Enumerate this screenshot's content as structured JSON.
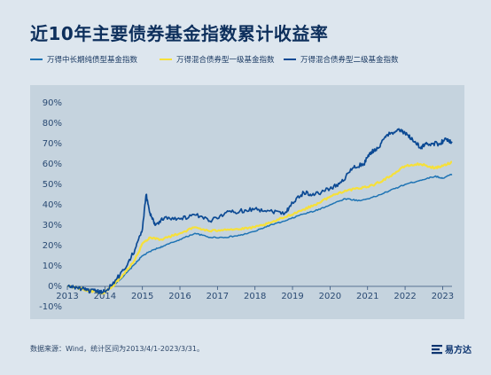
{
  "title": "近10年主要债券基金指数累计收益率",
  "source": "数据来源：Wind，统计区间为2013/4/1-2023/3/31。",
  "brand": "易方达",
  "colors": {
    "series1": "#1f74b4",
    "series2": "#f6e03a",
    "series3": "#0c4a94"
  },
  "chart_data": {
    "type": "line",
    "title": "近10年主要债券基金指数累计收益率",
    "xlabel": "",
    "ylabel": "",
    "xlim": [
      2013.0,
      2023.25
    ],
    "ylim": [
      -10,
      90
    ],
    "x_ticks": [
      "2013",
      "2014",
      "2015",
      "2016",
      "2017",
      "2018",
      "2019",
      "2020",
      "2021",
      "2022",
      "2023"
    ],
    "y_ticks": [
      "-10%",
      "0%",
      "10%",
      "20%",
      "30%",
      "40%",
      "50%",
      "60%",
      "70%",
      "80%",
      "90%"
    ],
    "grid": false,
    "legend": "top",
    "series": [
      {
        "name": "万得中长期纯债型基金指数",
        "color": "#1f74b4",
        "points": [
          [
            2013.0,
            0
          ],
          [
            2013.25,
            -0.5
          ],
          [
            2013.5,
            -1.5
          ],
          [
            2013.75,
            -2
          ],
          [
            2013.95,
            -3
          ],
          [
            2014.2,
            0
          ],
          [
            2014.5,
            5
          ],
          [
            2014.8,
            11
          ],
          [
            2015.0,
            15
          ],
          [
            2015.3,
            18
          ],
          [
            2015.6,
            20
          ],
          [
            2016.0,
            23
          ],
          [
            2016.4,
            26
          ],
          [
            2016.8,
            24
          ],
          [
            2017.2,
            24
          ],
          [
            2017.6,
            25
          ],
          [
            2018.0,
            27
          ],
          [
            2018.4,
            30
          ],
          [
            2018.8,
            32
          ],
          [
            2019.2,
            35
          ],
          [
            2019.6,
            37
          ],
          [
            2020.0,
            40
          ],
          [
            2020.4,
            43
          ],
          [
            2020.8,
            42
          ],
          [
            2021.2,
            44
          ],
          [
            2021.6,
            47
          ],
          [
            2022.0,
            50
          ],
          [
            2022.4,
            52
          ],
          [
            2022.8,
            54
          ],
          [
            2023.0,
            53
          ],
          [
            2023.25,
            55
          ]
        ]
      },
      {
        "name": "万得混合债券型一级基金指数",
        "color": "#f6e03a",
        "points": [
          [
            2013.0,
            0
          ],
          [
            2013.25,
            -0.5
          ],
          [
            2013.5,
            -2
          ],
          [
            2013.75,
            -2.5
          ],
          [
            2013.95,
            -3.5
          ],
          [
            2014.2,
            0
          ],
          [
            2014.5,
            6
          ],
          [
            2014.8,
            13
          ],
          [
            2015.0,
            21
          ],
          [
            2015.2,
            24
          ],
          [
            2015.5,
            23
          ],
          [
            2016.0,
            26
          ],
          [
            2016.4,
            29
          ],
          [
            2016.8,
            27
          ],
          [
            2017.2,
            28
          ],
          [
            2017.6,
            28
          ],
          [
            2018.0,
            29
          ],
          [
            2018.4,
            31
          ],
          [
            2018.8,
            34
          ],
          [
            2019.2,
            37
          ],
          [
            2019.6,
            40
          ],
          [
            2020.0,
            44
          ],
          [
            2020.4,
            47
          ],
          [
            2020.8,
            48
          ],
          [
            2021.2,
            50
          ],
          [
            2021.6,
            54
          ],
          [
            2022.0,
            59
          ],
          [
            2022.4,
            60
          ],
          [
            2022.8,
            58
          ],
          [
            2023.0,
            59
          ],
          [
            2023.25,
            61
          ]
        ]
      },
      {
        "name": "万得混合债券型二级基金指数",
        "color": "#0c4a94",
        "points": [
          [
            2013.0,
            0
          ],
          [
            2013.25,
            -0.5
          ],
          [
            2013.5,
            -2
          ],
          [
            2013.75,
            -2.5
          ],
          [
            2013.95,
            -3
          ],
          [
            2014.2,
            1
          ],
          [
            2014.5,
            8
          ],
          [
            2014.8,
            18
          ],
          [
            2015.0,
            28
          ],
          [
            2015.1,
            45
          ],
          [
            2015.2,
            36
          ],
          [
            2015.35,
            30
          ],
          [
            2015.6,
            34
          ],
          [
            2016.0,
            33
          ],
          [
            2016.4,
            35
          ],
          [
            2016.8,
            32
          ],
          [
            2017.2,
            36
          ],
          [
            2017.6,
            37
          ],
          [
            2018.0,
            38
          ],
          [
            2018.4,
            37
          ],
          [
            2018.8,
            36
          ],
          [
            2019.0,
            41
          ],
          [
            2019.3,
            46
          ],
          [
            2019.6,
            45
          ],
          [
            2020.0,
            48
          ],
          [
            2020.3,
            51
          ],
          [
            2020.6,
            58
          ],
          [
            2020.9,
            60
          ],
          [
            2021.1,
            66
          ],
          [
            2021.3,
            68
          ],
          [
            2021.5,
            74
          ],
          [
            2021.8,
            77
          ],
          [
            2022.0,
            75
          ],
          [
            2022.2,
            72
          ],
          [
            2022.4,
            68
          ],
          [
            2022.6,
            70
          ],
          [
            2022.9,
            70
          ],
          [
            2023.1,
            72
          ],
          [
            2023.25,
            71
          ]
        ]
      }
    ]
  }
}
